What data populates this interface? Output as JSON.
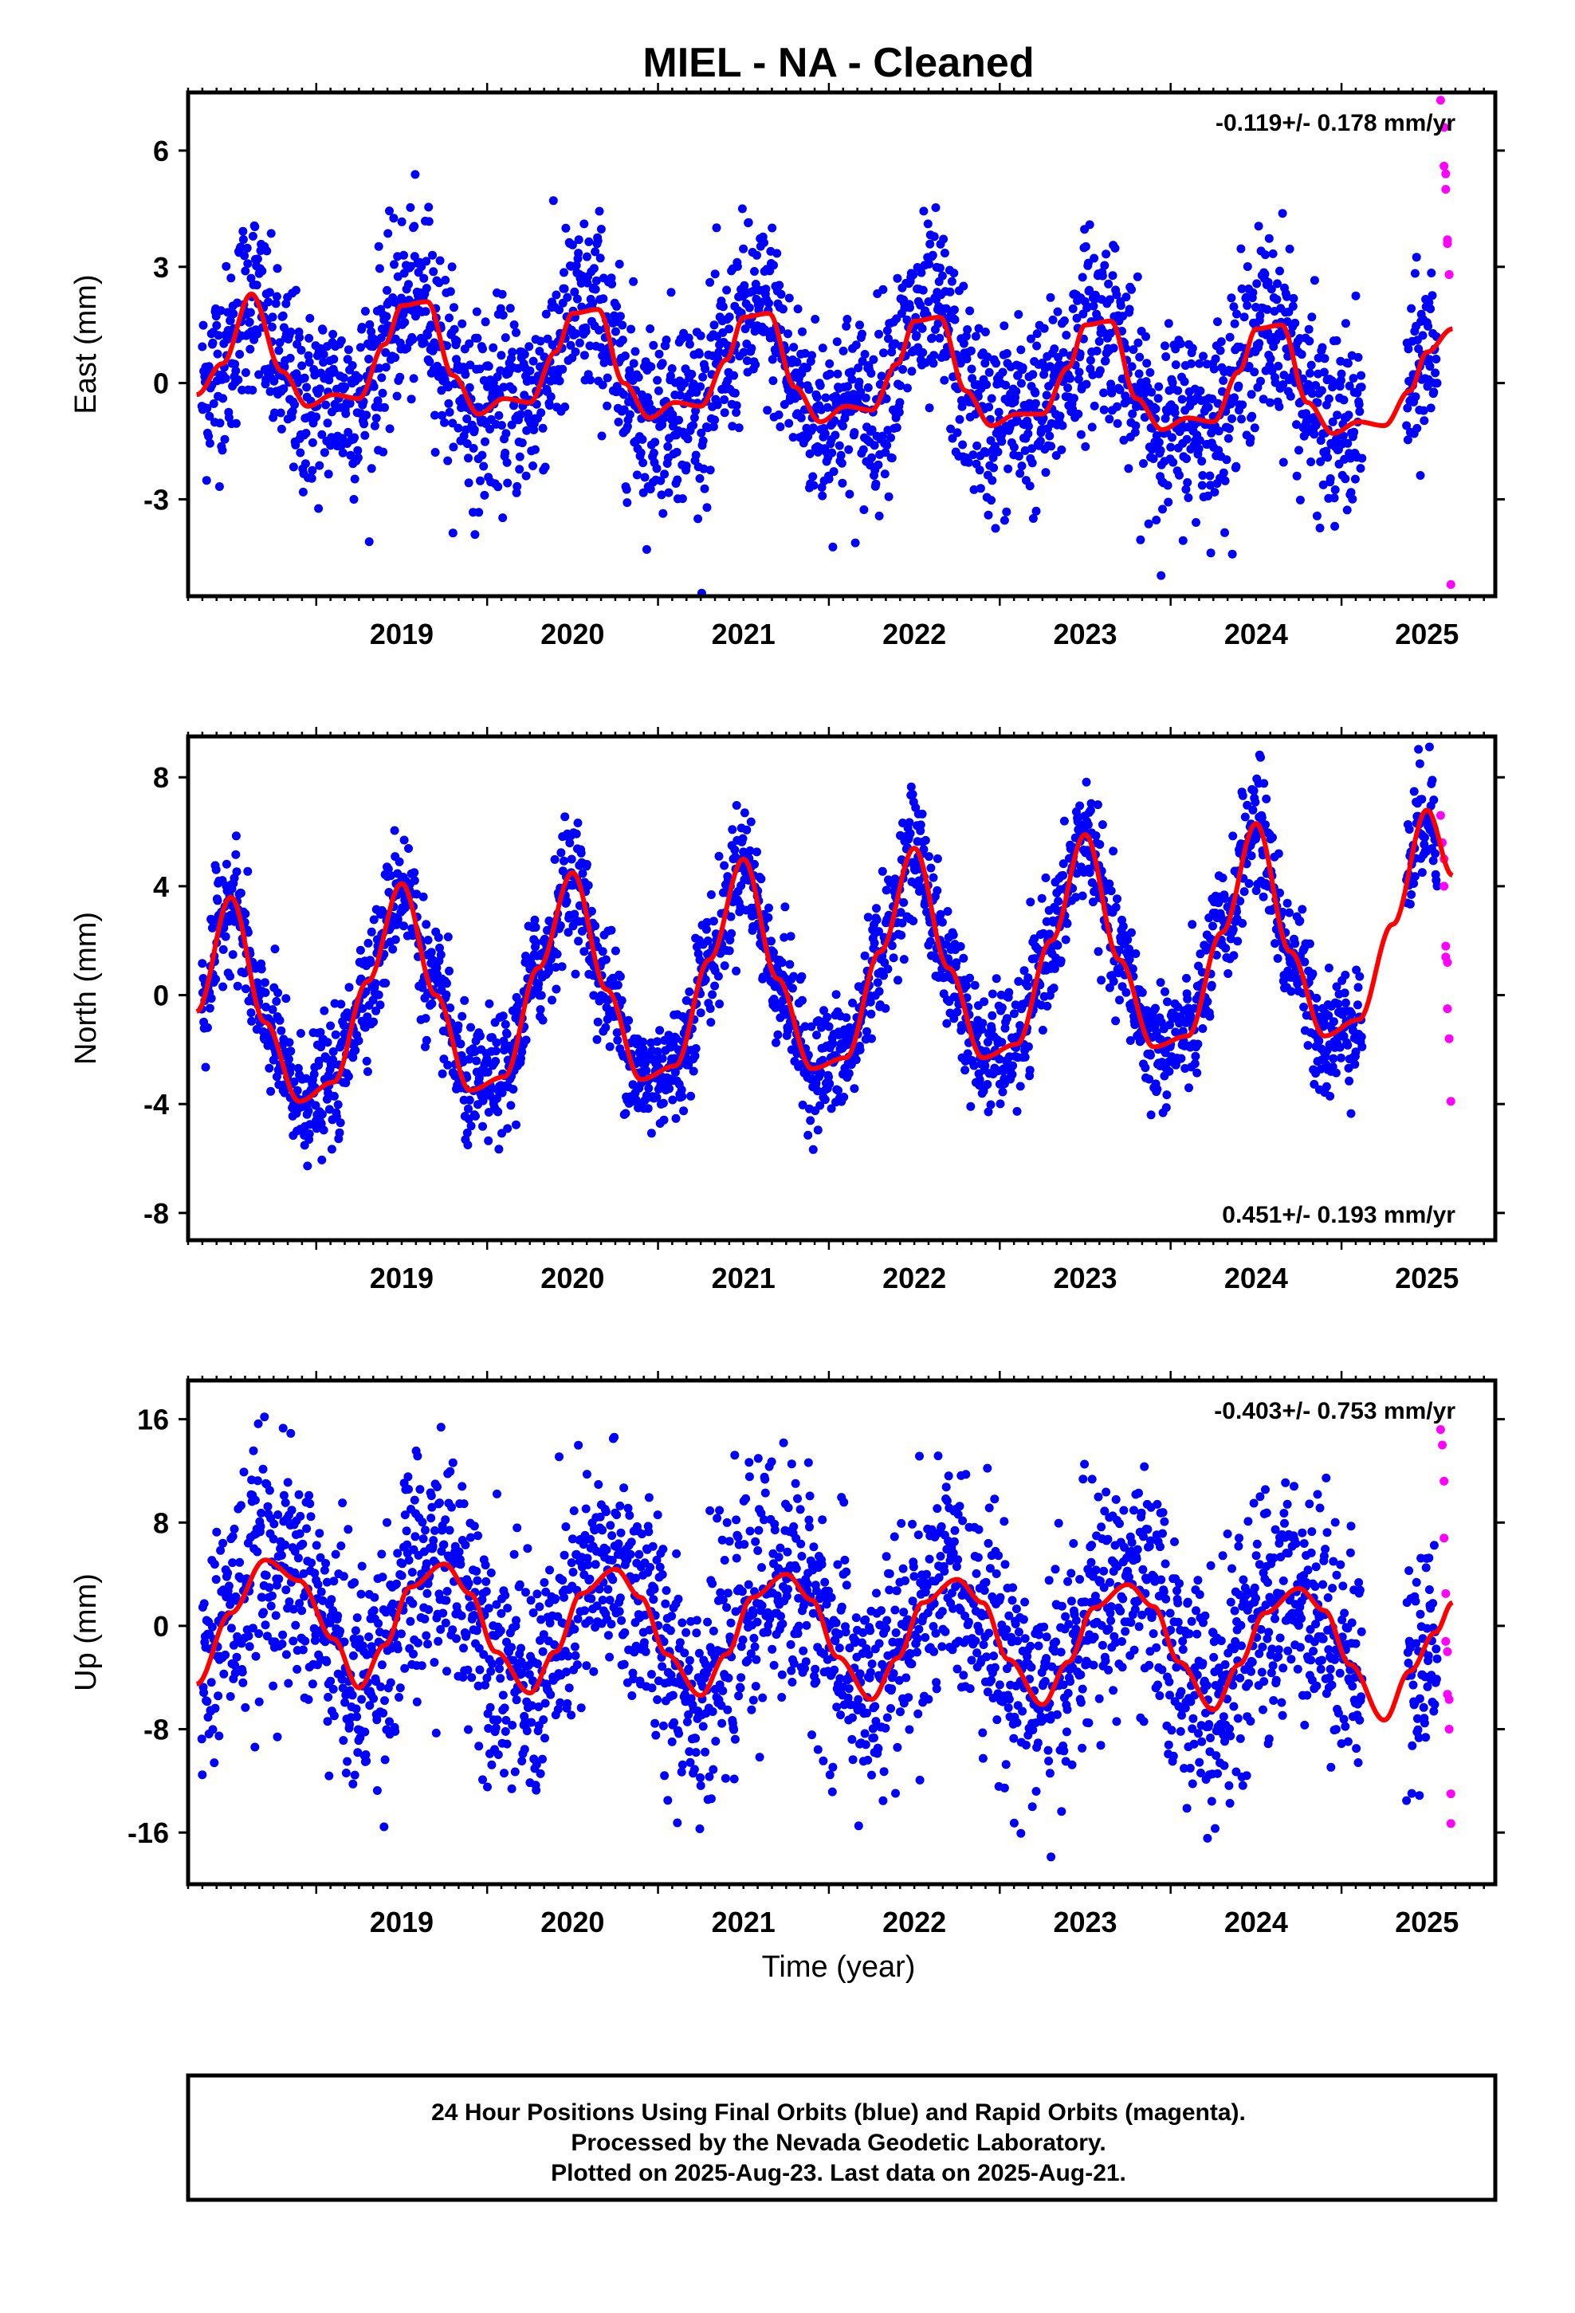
{
  "title": "MIEL  - NA - Cleaned",
  "xlabel": "Time (year)",
  "footer": {
    "lines": [
      "24 Hour Positions Using Final Orbits (blue) and Rapid Orbits (magenta).",
      "Processed by the Nevada Geodetic Laboratory.",
      "Plotted on 2025-Aug-23. Last data on 2025-Aug-21."
    ]
  },
  "colors": {
    "final": "#0000ff",
    "rapid": "#ff00ff",
    "model": "#ff0000",
    "frame": "#000000"
  },
  "chart_data": [
    {
      "type": "scatter",
      "ylabel": "East (mm)",
      "rate_text": "-0.119+/- 0.178 mm/yr",
      "rate_position": "top-right",
      "xlim": [
        2018.25,
        2025.9
      ],
      "ylim": [
        -5.5,
        7.5
      ],
      "yticks": [
        -3,
        0,
        3,
        6
      ],
      "xticks": [
        2019,
        2020,
        2021,
        2022,
        2023,
        2024,
        2025
      ],
      "model": {
        "x": [
          2018.3,
          2018.45,
          2018.62,
          2018.8,
          2018.95,
          2019.1,
          2019.25,
          2019.4,
          2019.5,
          2019.65,
          2019.8,
          2019.95,
          2020.1,
          2020.25,
          2020.4,
          2020.5,
          2020.65,
          2020.8,
          2020.95,
          2021.1,
          2021.25,
          2021.4,
          2021.5,
          2021.65,
          2021.8,
          2021.95,
          2022.1,
          2022.25,
          2022.4,
          2022.5,
          2022.65,
          2022.8,
          2022.95,
          2023.1,
          2023.25,
          2023.4,
          2023.5,
          2023.65,
          2023.8,
          2023.95,
          2024.1,
          2024.25,
          2024.4,
          2024.5,
          2024.65,
          2024.8,
          2024.95,
          2025.1,
          2025.25,
          2025.4,
          2025.5,
          2025.65
        ],
        "y": [
          -0.3,
          0.5,
          2.3,
          0.3,
          -0.6,
          -0.3,
          -0.4,
          1.0,
          2.0,
          2.1,
          0.2,
          -0.8,
          -0.4,
          -0.5,
          0.8,
          1.8,
          1.9,
          0.0,
          -0.9,
          -0.5,
          -0.6,
          0.6,
          1.7,
          1.8,
          -0.1,
          -1.0,
          -0.6,
          -0.7,
          0.5,
          1.6,
          1.7,
          -0.2,
          -1.1,
          -0.8,
          -0.8,
          0.4,
          1.5,
          1.6,
          -0.4,
          -1.2,
          -0.9,
          -1.0,
          0.3,
          1.4,
          1.5,
          -0.5,
          -1.3,
          -1.0,
          -1.1,
          -0.2,
          0.8,
          1.4
        ]
      },
      "final_sigma": 1.2,
      "rapid": {
        "x": [
          2025.58,
          2025.6,
          2025.6,
          2025.61,
          2025.61,
          2025.62,
          2025.62,
          2025.63,
          2025.63,
          2025.64
        ],
        "y": [
          7.3,
          6.6,
          5.6,
          5.4,
          5.0,
          3.7,
          3.6,
          2.8,
          2.8,
          -5.2
        ]
      }
    },
    {
      "type": "scatter",
      "ylabel": "North (mm)",
      "rate_text": "0.451+/- 0.193 mm/yr",
      "rate_position": "bottom-right",
      "xlim": [
        2018.25,
        2025.9
      ],
      "ylim": [
        -9,
        9.5
      ],
      "yticks": [
        -8,
        -4,
        0,
        4,
        8
      ],
      "xticks": [
        2019,
        2020,
        2021,
        2022,
        2023,
        2024,
        2025
      ],
      "model": {
        "x": [
          2018.3,
          2018.5,
          2018.7,
          2018.9,
          2019.1,
          2019.3,
          2019.5,
          2019.7,
          2019.9,
          2020.1,
          2020.3,
          2020.5,
          2020.7,
          2020.9,
          2021.1,
          2021.3,
          2021.5,
          2021.7,
          2021.9,
          2022.1,
          2022.3,
          2022.5,
          2022.7,
          2022.9,
          2023.1,
          2023.3,
          2023.5,
          2023.7,
          2023.9,
          2024.1,
          2024.3,
          2024.5,
          2024.7,
          2024.9,
          2025.1,
          2025.3,
          2025.5,
          2025.65
        ],
        "y": [
          -0.6,
          3.6,
          -1.0,
          -3.9,
          -3.2,
          0.5,
          4.1,
          0.0,
          -3.5,
          -3.0,
          1.0,
          4.5,
          0.2,
          -3.1,
          -2.6,
          1.3,
          5.0,
          0.6,
          -2.7,
          -2.3,
          1.6,
          5.4,
          1.0,
          -2.3,
          -1.8,
          2.0,
          5.9,
          1.3,
          -1.9,
          -1.5,
          2.3,
          6.3,
          1.6,
          -1.5,
          -0.9,
          2.6,
          6.8,
          4.4
        ]
      },
      "final_sigma": 1.1,
      "rapid": {
        "x": [
          2025.58,
          2025.59,
          2025.6,
          2025.6,
          2025.61,
          2025.61,
          2025.62,
          2025.62,
          2025.63,
          2025.64
        ],
        "y": [
          6.6,
          5.6,
          5.0,
          4.0,
          1.8,
          1.4,
          1.2,
          -0.5,
          -1.6,
          -3.9
        ]
      }
    },
    {
      "type": "scatter",
      "ylabel": "Up (mm)",
      "rate_text": "-0.403+/- 0.753 mm/yr",
      "rate_position": "top-right",
      "xlim": [
        2018.25,
        2025.9
      ],
      "ylim": [
        -20,
        19
      ],
      "yticks": [
        -16,
        -8,
        0,
        8,
        16
      ],
      "xticks": [
        2019,
        2020,
        2021,
        2022,
        2023,
        2024,
        2025
      ],
      "model": {
        "x": [
          2018.3,
          2018.5,
          2018.7,
          2018.9,
          2019.1,
          2019.25,
          2019.4,
          2019.55,
          2019.75,
          2019.9,
          2020.05,
          2020.25,
          2020.4,
          2020.55,
          2020.75,
          2020.9,
          2021.05,
          2021.25,
          2021.4,
          2021.55,
          2021.75,
          2021.9,
          2022.05,
          2022.25,
          2022.4,
          2022.55,
          2022.75,
          2022.9,
          2023.05,
          2023.25,
          2023.4,
          2023.55,
          2023.75,
          2023.9,
          2024.05,
          2024.25,
          2024.4,
          2024.55,
          2024.75,
          2024.9,
          2025.05,
          2025.25,
          2025.4,
          2025.55,
          2025.65
        ],
        "y": [
          -4.5,
          1.0,
          5.1,
          3.5,
          -1.0,
          -4.8,
          -1.5,
          3.0,
          4.8,
          2.5,
          -2.0,
          -5.2,
          -2.0,
          2.5,
          4.4,
          2.2,
          -2.2,
          -5.4,
          -2.2,
          2.2,
          4.0,
          2.0,
          -2.4,
          -5.7,
          -2.5,
          1.8,
          3.6,
          1.8,
          -2.6,
          -6.1,
          -2.8,
          1.4,
          3.2,
          1.5,
          -2.8,
          -6.5,
          -3.0,
          1.0,
          2.9,
          1.2,
          -3.0,
          -7.3,
          -3.5,
          -0.5,
          1.8
        ]
      },
      "final_sigma": 4.5,
      "rapid": {
        "x": [
          2025.58,
          2025.59,
          2025.6,
          2025.6,
          2025.61,
          2025.61,
          2025.62,
          2025.62,
          2025.63,
          2025.63,
          2025.64,
          2025.64
        ],
        "y": [
          15.2,
          14.0,
          11.2,
          6.8,
          2.5,
          -1.2,
          -2.0,
          -5.3,
          -5.7,
          -8.0,
          -13.0,
          -15.3
        ]
      }
    }
  ]
}
